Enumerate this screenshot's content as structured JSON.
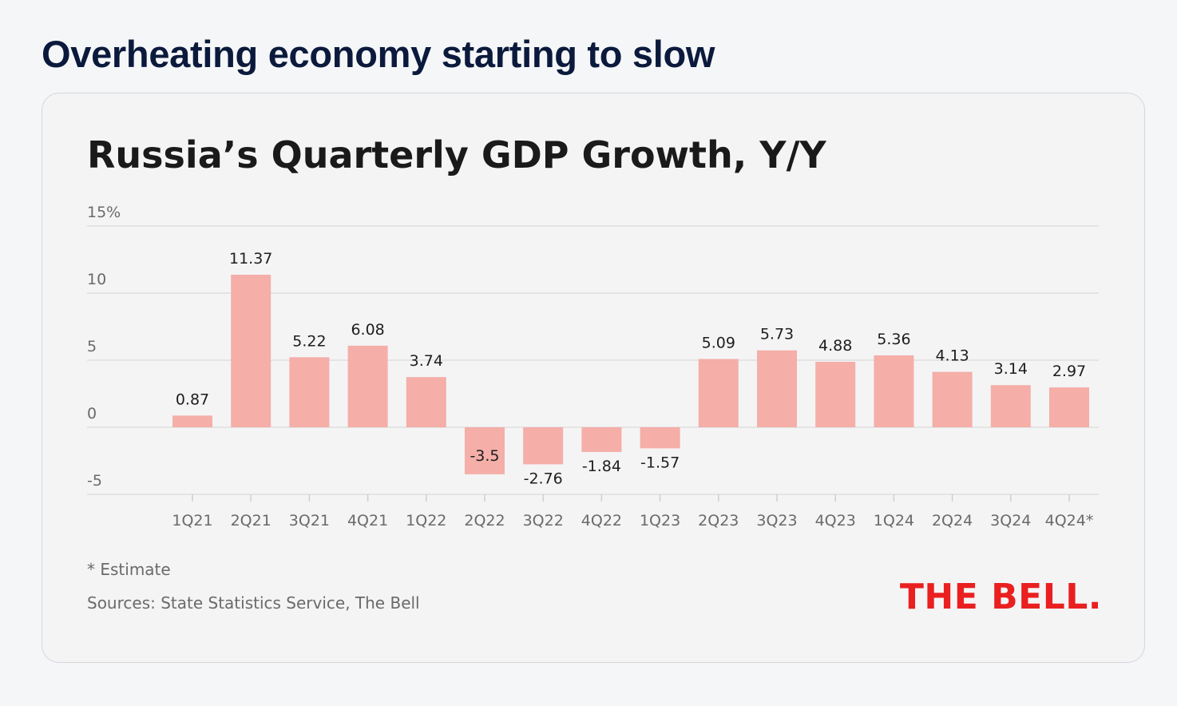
{
  "page": {
    "headline": "Overheating economy starting to slow"
  },
  "chart_data": {
    "type": "bar",
    "title": "Russia’s Quarterly GDP Growth, Y/Y",
    "xlabel": "",
    "ylabel": "",
    "categories": [
      "1Q21",
      "2Q21",
      "3Q21",
      "4Q21",
      "1Q22",
      "2Q22",
      "3Q22",
      "4Q22",
      "1Q23",
      "2Q23",
      "3Q23",
      "4Q23",
      "1Q24",
      "2Q24",
      "3Q24",
      "4Q24*"
    ],
    "values": [
      0.87,
      11.37,
      5.22,
      6.08,
      3.74,
      -3.5,
      -2.76,
      -1.84,
      -1.57,
      5.09,
      5.73,
      4.88,
      5.36,
      4.13,
      3.14,
      2.97
    ],
    "value_labels": [
      "0.87",
      "11.37",
      "5.22",
      "6.08",
      "3.74",
      "-3.5",
      "-2.76",
      "-1.84",
      "-1.57",
      "5.09",
      "5.73",
      "4.88",
      "5.36",
      "4.13",
      "3.14",
      "2.97"
    ],
    "ylim": [
      -5,
      15
    ],
    "y_ticks": [
      15,
      10,
      5,
      0,
      -5
    ],
    "y_tick_labels": [
      "15%",
      "10",
      "5",
      "0",
      "-5"
    ],
    "grid": true,
    "bar_color": "#f5aea8",
    "footnote": "* Estimate",
    "source": "Sources: State Statistics Service, The Bell",
    "brand": "THE BELL."
  }
}
